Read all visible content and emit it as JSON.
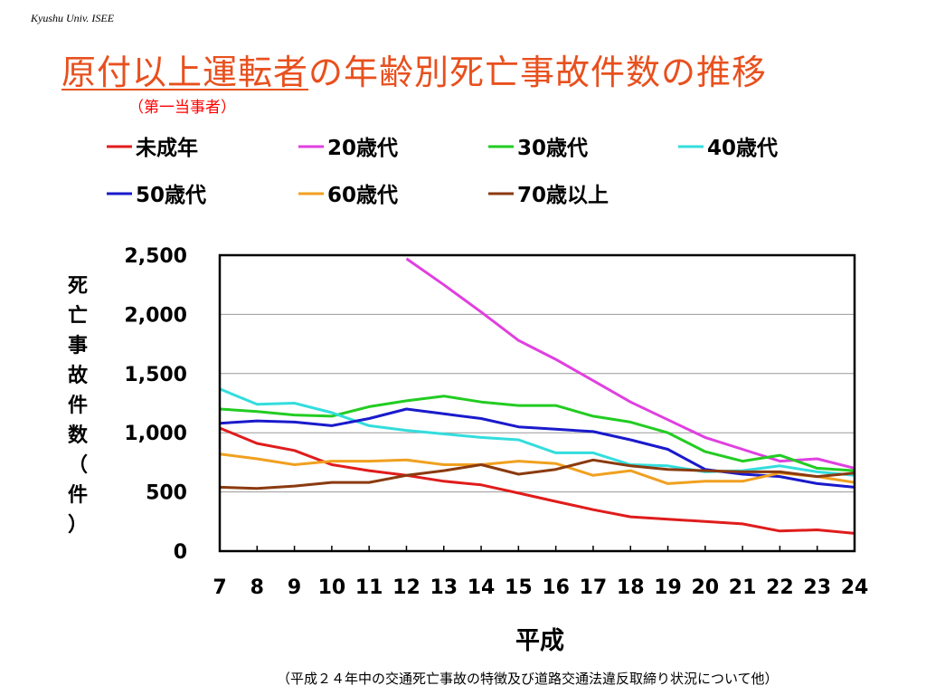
{
  "header": {
    "affiliation": "Kyushu Univ. ISEE",
    "title_underlined": "原付以上運転者",
    "title_rest": "の年齢別死亡事故件数の推移",
    "subtitle": "（第一当事者）"
  },
  "footer": {
    "source": "（平成２４年中の交通死亡事故の特徴及び道路交通法違反取締り状況について他）"
  },
  "chart_data": {
    "type": "line",
    "xlabel": "平成",
    "ylabel": "死亡事故件数（件）",
    "categories": [
      "7",
      "8",
      "9",
      "10",
      "11",
      "12",
      "13",
      "14",
      "15",
      "16",
      "17",
      "18",
      "19",
      "20",
      "21",
      "22",
      "23",
      "24"
    ],
    "ylim": [
      0,
      2500
    ],
    "yticks": [
      "0",
      "500",
      "1,000",
      "1,500",
      "2,000",
      "2,500"
    ],
    "grid": true,
    "legend_position": "top",
    "series": [
      {
        "name": "未成年",
        "color": "#e01c1c",
        "values": [
          1040,
          910,
          850,
          730,
          680,
          640,
          590,
          560,
          490,
          420,
          350,
          290,
          270,
          250,
          230,
          170,
          180,
          150
        ]
      },
      {
        "name": "20歳代",
        "color": "#e040e0",
        "values": [
          null,
          null,
          null,
          null,
          null,
          2470,
          2250,
          2020,
          1780,
          1620,
          1440,
          1260,
          1110,
          960,
          860,
          760,
          780,
          700
        ]
      },
      {
        "name": "30歳代",
        "color": "#22cc22",
        "values": [
          1200,
          1180,
          1150,
          1140,
          1220,
          1270,
          1310,
          1260,
          1230,
          1230,
          1140,
          1090,
          1000,
          840,
          760,
          810,
          700,
          680
        ]
      },
      {
        "name": "40歳代",
        "color": "#33dddd",
        "values": [
          1370,
          1240,
          1250,
          1170,
          1060,
          1020,
          990,
          960,
          940,
          830,
          830,
          730,
          720,
          670,
          680,
          720,
          670,
          640
        ]
      },
      {
        "name": "50歳代",
        "color": "#1a1acc",
        "values": [
          1080,
          1100,
          1090,
          1060,
          1120,
          1200,
          1160,
          1120,
          1050,
          1030,
          1010,
          940,
          860,
          690,
          650,
          630,
          570,
          540
        ]
      },
      {
        "name": "60歳代",
        "color": "#f0a020",
        "values": [
          820,
          780,
          730,
          760,
          760,
          770,
          730,
          730,
          760,
          740,
          640,
          680,
          570,
          590,
          590,
          660,
          630,
          580
        ]
      },
      {
        "name": "70歳以上",
        "color": "#8b3a0f",
        "values": [
          540,
          530,
          550,
          580,
          580,
          640,
          680,
          730,
          650,
          690,
          770,
          720,
          690,
          680,
          670,
          670,
          630,
          660
        ]
      }
    ]
  }
}
